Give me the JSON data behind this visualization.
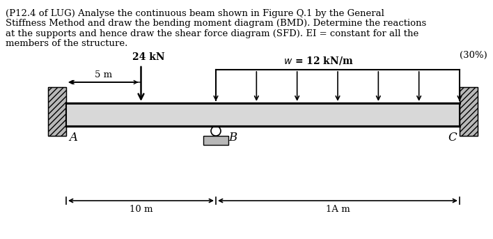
{
  "text_line1": "(P12.4 of LUG) Analyse the continuous beam shown in Figure Q.1 by the General",
  "text_line2": "Stiffness Method and draw the bending moment diagram (BMD). Determine the reactions",
  "text_line3": "at the supports and hence draw the shear force diagram (SFD). EI = constant for all the",
  "text_line4": "members of the structure.",
  "mark_text": "(30%)",
  "beam_color": "#d8d8d8",
  "wall_color": "#b8b8b8",
  "wall_hatch": "////",
  "font_size_body": 9.5,
  "font_size_labels": 11,
  "font_size_dim": 9.5,
  "font_size_load": 10,
  "num_dist_arrows": 7
}
